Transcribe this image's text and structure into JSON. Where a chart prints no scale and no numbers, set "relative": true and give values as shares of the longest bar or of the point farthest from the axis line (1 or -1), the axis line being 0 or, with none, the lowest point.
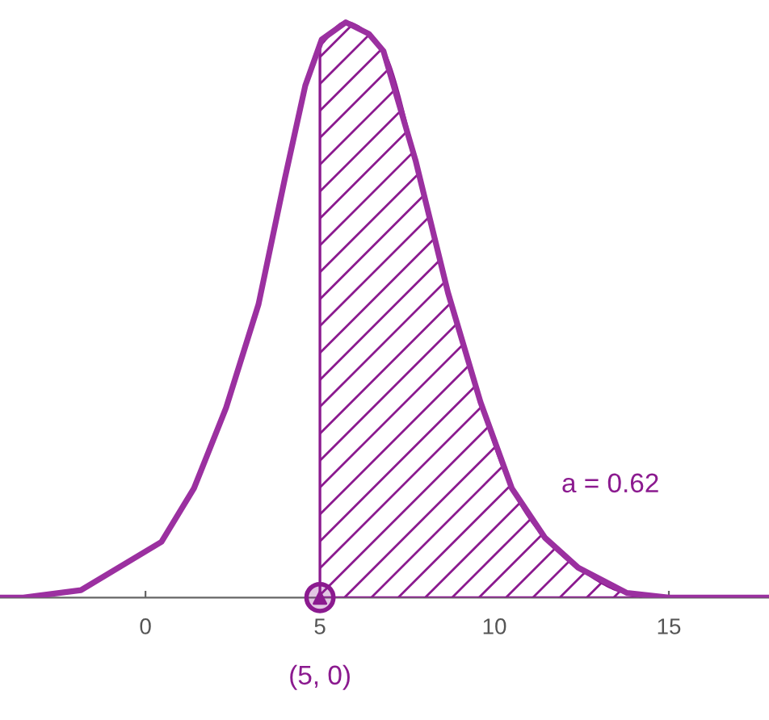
{
  "chart_data": {
    "type": "line",
    "relative": true,
    "xlim": [
      -4.17,
      17.87
    ],
    "xticks": [
      0,
      5,
      10,
      15
    ],
    "grid": false,
    "legend": false,
    "series": [
      {
        "color": "#9b30a0",
        "x": [
          -4.17,
          -3.5,
          -1.85,
          0.46,
          1.39,
          2.31,
          3.24,
          4.0,
          4.58,
          5.05,
          5.74,
          6.4,
          6.82,
          7.74,
          8.67,
          9.6,
          10.5,
          11.45,
          12.4,
          13.8,
          15,
          17.87
        ],
        "values": [
          0,
          0,
          0.013,
          0.097,
          0.19,
          0.33,
          0.51,
          0.73,
          0.89,
          0.97,
          1.0,
          0.98,
          0.95,
          0.76,
          0.53,
          0.34,
          0.19,
          0.104,
          0.052,
          0.008,
          0,
          0
        ]
      },
      {
        "type": "area",
        "color": "#8b1a8f",
        "x": [
          5,
          5.74,
          6.4,
          6.82,
          7.74,
          8.67,
          9.6,
          10.5,
          11.45,
          12.4,
          13.8,
          15,
          17.87
        ],
        "values": [
          0.96,
          1.0,
          0.98,
          0.95,
          0.76,
          0.53,
          0.34,
          0.19,
          0.104,
          0.052,
          0.008,
          0,
          0
        ]
      },
      {
        "type": "scatter",
        "color": "#8b1a8f",
        "marker": "triangle",
        "x": [
          5
        ],
        "values": [
          0
        ]
      }
    ],
    "annotations": [
      {
        "text": "(5, 0)",
        "x": 5,
        "y": 0
      },
      "a = 0.62"
    ]
  }
}
